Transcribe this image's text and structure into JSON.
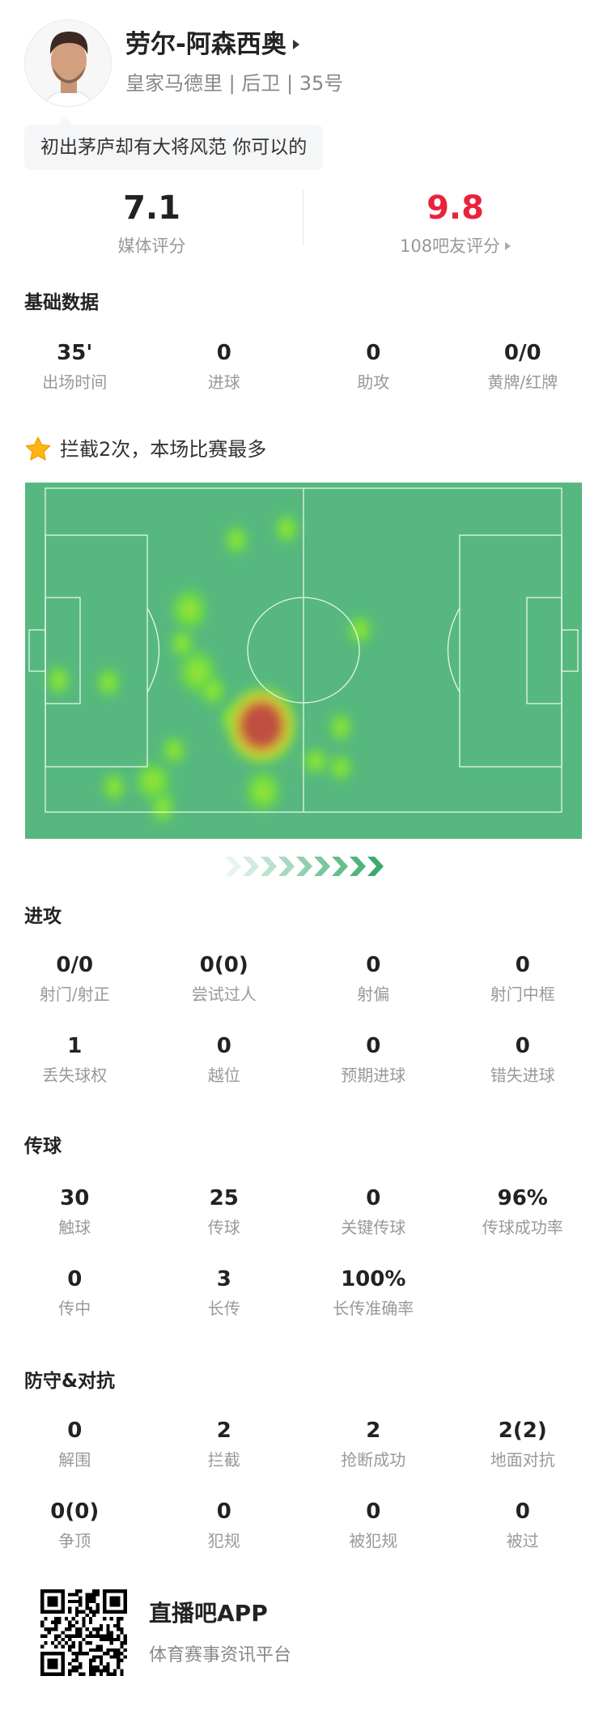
{
  "player": {
    "name": "劳尔-阿森西奥",
    "team": "皇家马德里",
    "position": "后卫",
    "number": "35号",
    "sep": " | ",
    "quote": "初出茅庐却有大将风范 你可以的"
  },
  "ratings": {
    "media": {
      "value": "7.1",
      "label": "媒体评分"
    },
    "fans": {
      "value": "9.8",
      "label": "108吧友评分",
      "color": "#e8233c"
    }
  },
  "basic": {
    "title": "基础数据",
    "items": [
      {
        "v": "35'",
        "l": "出场时间"
      },
      {
        "v": "0",
        "l": "进球"
      },
      {
        "v": "0",
        "l": "助攻"
      },
      {
        "v": "0/0",
        "l": "黄牌/红牌"
      }
    ]
  },
  "highlight": {
    "icon": "star-icon",
    "text": "拦截2次，本场比赛最多"
  },
  "heatmap": {
    "pitch_color": "#56b87e",
    "hot_color": "#c0503f"
  },
  "attack": {
    "title": "进攻",
    "items": [
      {
        "v": "0/0",
        "l": "射门/射正"
      },
      {
        "v": "0(0)",
        "l": "尝试过人"
      },
      {
        "v": "0",
        "l": "射偏"
      },
      {
        "v": "0",
        "l": "射门中框"
      },
      {
        "v": "1",
        "l": "丢失球权"
      },
      {
        "v": "0",
        "l": "越位"
      },
      {
        "v": "0",
        "l": "预期进球"
      },
      {
        "v": "0",
        "l": "错失进球"
      }
    ]
  },
  "passing": {
    "title": "传球",
    "items": [
      {
        "v": "30",
        "l": "触球"
      },
      {
        "v": "25",
        "l": "传球"
      },
      {
        "v": "0",
        "l": "关键传球"
      },
      {
        "v": "96%",
        "l": "传球成功率"
      },
      {
        "v": "0",
        "l": "传中"
      },
      {
        "v": "3",
        "l": "长传"
      },
      {
        "v": "100%",
        "l": "长传准确率"
      }
    ]
  },
  "defense": {
    "title": "防守&对抗",
    "items": [
      {
        "v": "0",
        "l": "解围"
      },
      {
        "v": "2",
        "l": "拦截"
      },
      {
        "v": "2",
        "l": "抢断成功"
      },
      {
        "v": "2(2)",
        "l": "地面对抗"
      },
      {
        "v": "0(0)",
        "l": "争顶"
      },
      {
        "v": "0",
        "l": "犯规"
      },
      {
        "v": "0",
        "l": "被犯规"
      },
      {
        "v": "0",
        "l": "被过"
      }
    ]
  },
  "footer": {
    "app": "直播吧APP",
    "tagline": "体育赛事资讯平台"
  }
}
